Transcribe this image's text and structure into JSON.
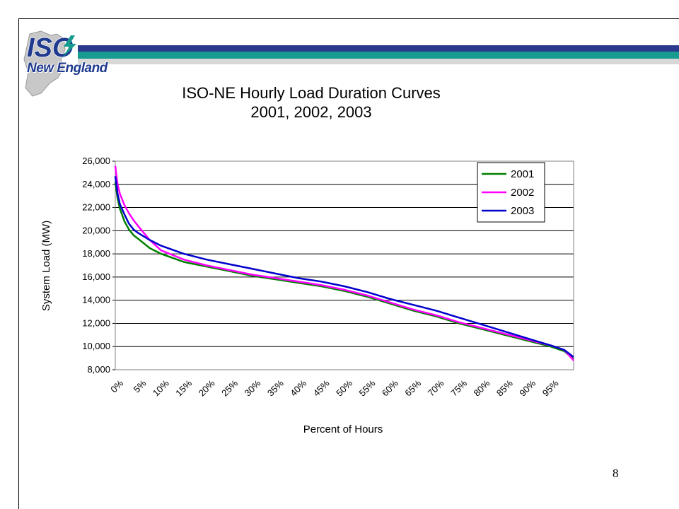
{
  "slide": {
    "page_number": "8",
    "logo_text": "New England",
    "logo_mark": "ISO"
  },
  "colors": {
    "band_navy": "#2b3a8f",
    "band_teal": "#179c8f",
    "band_gray": "#d8d8d8"
  },
  "chart_data": {
    "type": "line",
    "title": "ISO-NE Hourly Load Duration Curves",
    "subtitle": "2001, 2002, 2003",
    "xlabel": "Percent of Hours",
    "ylabel": "System Load (MW)",
    "xlim": [
      0,
      100
    ],
    "ylim": [
      8000,
      26000
    ],
    "grid": true,
    "legend": "top-right",
    "x_ticks": [
      "0%",
      "5%",
      "10%",
      "15%",
      "20%",
      "25%",
      "30%",
      "35%",
      "40%",
      "45%",
      "50%",
      "55%",
      "60%",
      "65%",
      "70%",
      "75%",
      "80%",
      "85%",
      "90%",
      "95%"
    ],
    "y_ticks": [
      "8,000",
      "10,000",
      "12,000",
      "14,000",
      "16,000",
      "18,000",
      "20,000",
      "22,000",
      "24,000",
      "26,000"
    ],
    "x": [
      0,
      0.5,
      1,
      2,
      3,
      4,
      5,
      7.5,
      10,
      15,
      20,
      25,
      30,
      35,
      40,
      45,
      50,
      55,
      60,
      65,
      70,
      75,
      80,
      85,
      90,
      95,
      98,
      100
    ],
    "series": [
      {
        "name": "2001",
        "color": "#008000",
        "values": [
          24200,
          22800,
          21900,
          20800,
          20100,
          19600,
          19300,
          18500,
          18000,
          17300,
          16900,
          16500,
          16100,
          15800,
          15500,
          15200,
          14800,
          14300,
          13700,
          13100,
          12600,
          12000,
          11500,
          11000,
          10500,
          10000,
          9600,
          8900
        ]
      },
      {
        "name": "2002",
        "color": "#ff00ff",
        "values": [
          25600,
          24000,
          23200,
          22200,
          21500,
          20900,
          20400,
          19200,
          18300,
          17500,
          17000,
          16600,
          16200,
          15900,
          15600,
          15300,
          14900,
          14400,
          13800,
          13200,
          12700,
          12100,
          11600,
          11100,
          10600,
          10100,
          9700,
          8800
        ]
      },
      {
        "name": "2003",
        "color": "#0000cc",
        "values": [
          24700,
          23200,
          22300,
          21400,
          20600,
          20100,
          19800,
          19200,
          18700,
          18000,
          17500,
          17100,
          16700,
          16300,
          15900,
          15600,
          15200,
          14700,
          14100,
          13600,
          13100,
          12500,
          11900,
          11300,
          10700,
          10100,
          9700,
          9100
        ]
      }
    ]
  }
}
